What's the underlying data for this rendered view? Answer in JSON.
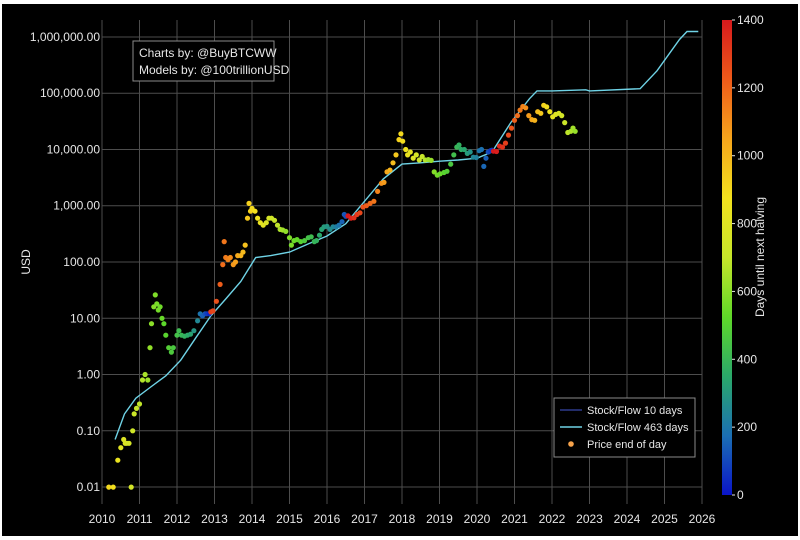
{
  "chart_data": {
    "type": "scatter",
    "title": "",
    "xlabel": "",
    "ylabel": "USD",
    "y_scale": "log",
    "ylim": [
      0.005,
      2000000
    ],
    "xlim": [
      2010,
      2026
    ],
    "x_ticks": [
      "2010",
      "2011",
      "2012",
      "2013",
      "2014",
      "2015",
      "2016",
      "2017",
      "2018",
      "2019",
      "2020",
      "2021",
      "2022",
      "2023",
      "2024",
      "2025",
      "2026"
    ],
    "y_ticks": [
      {
        "value": 0.01,
        "label": "0.01"
      },
      {
        "value": 0.1,
        "label": "0.10"
      },
      {
        "value": 1,
        "label": "1.00"
      },
      {
        "value": 10,
        "label": "10.00"
      },
      {
        "value": 100,
        "label": "100.00"
      },
      {
        "value": 1000,
        "label": "1,000.00"
      },
      {
        "value": 10000,
        "label": "10,000.00"
      },
      {
        "value": 100000,
        "label": "100,000.00"
      },
      {
        "value": 1000000,
        "label": "1,000,000.00"
      }
    ],
    "grid": true,
    "annotation": [
      "Charts by: @BuyBTCWW",
      "Models by: @100trillionUSD"
    ],
    "legend": {
      "position": "bottom-right",
      "entries": [
        {
          "label": "Stock/Flow 10 days",
          "color": "#2e3a8c",
          "marker": "line"
        },
        {
          "label": "Stock/Flow 463 days",
          "color": "#6fd3e6",
          "marker": "line"
        },
        {
          "label": "Price end of day",
          "color": "#f7a34b",
          "marker": "dot"
        }
      ]
    },
    "colorbar": {
      "label": "Days until next halving",
      "range": [
        0,
        1400
      ],
      "ticks": [
        0,
        200,
        400,
        600,
        800,
        1000,
        1200,
        1400
      ],
      "colormap": [
        "#0a14c8",
        "#1b6fb3",
        "#2aa96a",
        "#5fd829",
        "#c6e62a",
        "#f3e21e",
        "#f6a51c",
        "#ee5a1a",
        "#d7191c"
      ]
    },
    "series": [
      {
        "name": "Stock/Flow 463 days",
        "color": "#6fd3e6",
        "points": [
          [
            2010.35,
            0.07
          ],
          [
            2010.6,
            0.2
          ],
          [
            2010.9,
            0.38
          ],
          [
            2011.3,
            0.6
          ],
          [
            2011.7,
            0.95
          ],
          [
            2012.1,
            1.8
          ],
          [
            2012.5,
            4.5
          ],
          [
            2012.9,
            11
          ],
          [
            2013.3,
            22
          ],
          [
            2013.7,
            45
          ],
          [
            2014.1,
            120
          ],
          [
            2014.5,
            130
          ],
          [
            2015.0,
            150
          ],
          [
            2015.5,
            210
          ],
          [
            2016.0,
            290
          ],
          [
            2016.5,
            480
          ],
          [
            2017.0,
            1200
          ],
          [
            2017.5,
            3000
          ],
          [
            2018.0,
            5500
          ],
          [
            2018.5,
            5800
          ],
          [
            2019.0,
            6200
          ],
          [
            2019.5,
            6500
          ],
          [
            2020.0,
            7000
          ],
          [
            2020.4,
            9000
          ],
          [
            2020.9,
            30000
          ],
          [
            2021.4,
            80000
          ],
          [
            2021.6,
            110000
          ],
          [
            2022.0,
            110000
          ],
          [
            2022.9,
            115000
          ],
          [
            2023.0,
            110000
          ],
          [
            2024.35,
            120000
          ],
          [
            2024.8,
            250000
          ],
          [
            2025.4,
            900000
          ],
          [
            2025.6,
            1250000
          ],
          [
            2025.9,
            1250000
          ]
        ]
      },
      {
        "name": "Price end of day",
        "marker": "dot",
        "points": [
          [
            2010.18,
            0.01,
            900
          ],
          [
            2010.3,
            0.01,
            880
          ],
          [
            2010.42,
            0.03,
            840
          ],
          [
            2010.5,
            0.05,
            800
          ],
          [
            2010.58,
            0.07,
            790
          ],
          [
            2010.62,
            0.06,
            780
          ],
          [
            2010.66,
            0.06,
            770
          ],
          [
            2010.72,
            0.06,
            760
          ],
          [
            2010.78,
            0.01,
            750
          ],
          [
            2010.82,
            0.1,
            730
          ],
          [
            2010.86,
            0.2,
            720
          ],
          [
            2010.92,
            0.25,
            700
          ],
          [
            2011.0,
            0.3,
            690
          ],
          [
            2011.08,
            0.8,
            670
          ],
          [
            2011.15,
            1.0,
            650
          ],
          [
            2011.22,
            0.8,
            630
          ],
          [
            2011.28,
            3,
            610
          ],
          [
            2011.32,
            8,
            600
          ],
          [
            2011.38,
            16,
            590
          ],
          [
            2011.42,
            26,
            580
          ],
          [
            2011.46,
            18,
            570
          ],
          [
            2011.5,
            14,
            560
          ],
          [
            2011.55,
            16,
            550
          ],
          [
            2011.6,
            10,
            540
          ],
          [
            2011.65,
            8,
            520
          ],
          [
            2011.7,
            5,
            510
          ],
          [
            2011.78,
            3,
            490
          ],
          [
            2011.85,
            2.5,
            470
          ],
          [
            2011.9,
            3,
            460
          ],
          [
            2012.0,
            5,
            440
          ],
          [
            2012.05,
            6,
            420
          ],
          [
            2012.12,
            5,
            400
          ],
          [
            2012.2,
            4.8,
            380
          ],
          [
            2012.28,
            5,
            360
          ],
          [
            2012.36,
            5.2,
            330
          ],
          [
            2012.45,
            6,
            290
          ],
          [
            2012.55,
            9,
            250
          ],
          [
            2012.62,
            12,
            190
          ],
          [
            2012.68,
            11,
            150
          ],
          [
            2012.75,
            12,
            120
          ],
          [
            2012.8,
            12,
            80
          ],
          [
            2012.86,
            12,
            40
          ],
          [
            2012.9,
            13,
            1300
          ],
          [
            2012.96,
            13.5,
            1280
          ],
          [
            2013.05,
            20,
            1250
          ],
          [
            2013.15,
            40,
            1220
          ],
          [
            2013.22,
            90,
            1180
          ],
          [
            2013.26,
            230,
            1160
          ],
          [
            2013.3,
            120,
            1150
          ],
          [
            2013.36,
            110,
            1130
          ],
          [
            2013.42,
            120,
            1110
          ],
          [
            2013.5,
            90,
            1080
          ],
          [
            2013.56,
            100,
            1060
          ],
          [
            2013.62,
            130,
            1040
          ],
          [
            2013.7,
            130,
            1010
          ],
          [
            2013.76,
            150,
            990
          ],
          [
            2013.82,
            200,
            970
          ],
          [
            2013.88,
            600,
            950
          ],
          [
            2013.92,
            1100,
            930
          ],
          [
            2013.96,
            800,
            920
          ],
          [
            2014.0,
            900,
            900
          ],
          [
            2014.08,
            800,
            880
          ],
          [
            2014.15,
            600,
            860
          ],
          [
            2014.22,
            500,
            840
          ],
          [
            2014.3,
            450,
            810
          ],
          [
            2014.38,
            500,
            780
          ],
          [
            2014.45,
            600,
            760
          ],
          [
            2014.52,
            600,
            740
          ],
          [
            2014.6,
            550,
            710
          ],
          [
            2014.68,
            450,
            690
          ],
          [
            2014.75,
            380,
            660
          ],
          [
            2014.82,
            370,
            640
          ],
          [
            2014.9,
            350,
            610
          ],
          [
            2015.0,
            270,
            580
          ],
          [
            2015.05,
            200,
            570
          ],
          [
            2015.12,
            240,
            550
          ],
          [
            2015.2,
            250,
            530
          ],
          [
            2015.3,
            230,
            500
          ],
          [
            2015.4,
            240,
            470
          ],
          [
            2015.5,
            270,
            440
          ],
          [
            2015.58,
            280,
            420
          ],
          [
            2015.66,
            230,
            400
          ],
          [
            2015.72,
            240,
            380
          ],
          [
            2015.8,
            300,
            350
          ],
          [
            2015.86,
            380,
            330
          ],
          [
            2015.92,
            420,
            310
          ],
          [
            2016.0,
            430,
            290
          ],
          [
            2016.08,
            380,
            270
          ],
          [
            2016.16,
            420,
            250
          ],
          [
            2016.24,
            420,
            220
          ],
          [
            2016.32,
            450,
            190
          ],
          [
            2016.4,
            520,
            150
          ],
          [
            2016.46,
            700,
            130
          ],
          [
            2016.5,
            650,
            110
          ],
          [
            2016.56,
            660,
            1400
          ],
          [
            2016.64,
            600,
            1370
          ],
          [
            2016.72,
            610,
            1340
          ],
          [
            2016.8,
            700,
            1310
          ],
          [
            2016.88,
            750,
            1280
          ],
          [
            2016.96,
            950,
            1250
          ],
          [
            2017.05,
            1000,
            1220
          ],
          [
            2017.15,
            1100,
            1190
          ],
          [
            2017.25,
            1200,
            1160
          ],
          [
            2017.35,
            1800,
            1130
          ],
          [
            2017.45,
            2500,
            1100
          ],
          [
            2017.52,
            2600,
            1070
          ],
          [
            2017.6,
            4000,
            1040
          ],
          [
            2017.68,
            4300,
            1010
          ],
          [
            2017.76,
            5800,
            980
          ],
          [
            2017.84,
            8000,
            950
          ],
          [
            2017.92,
            15000,
            920
          ],
          [
            2017.97,
            19000,
            900
          ],
          [
            2018.02,
            14000,
            890
          ],
          [
            2018.1,
            10000,
            860
          ],
          [
            2018.15,
            8000,
            840
          ],
          [
            2018.22,
            9000,
            820
          ],
          [
            2018.3,
            7000,
            790
          ],
          [
            2018.38,
            8000,
            760
          ],
          [
            2018.46,
            6500,
            730
          ],
          [
            2018.54,
            7500,
            700
          ],
          [
            2018.62,
            6500,
            670
          ],
          [
            2018.7,
            6600,
            640
          ],
          [
            2018.78,
            6400,
            620
          ],
          [
            2018.86,
            4000,
            590
          ],
          [
            2018.94,
            3500,
            560
          ],
          [
            2019.02,
            3700,
            540
          ],
          [
            2019.12,
            3900,
            510
          ],
          [
            2019.2,
            4100,
            490
          ],
          [
            2019.3,
            5500,
            460
          ],
          [
            2019.38,
            8000,
            430
          ],
          [
            2019.46,
            11000,
            400
          ],
          [
            2019.52,
            12000,
            380
          ],
          [
            2019.58,
            10000,
            360
          ],
          [
            2019.66,
            10000,
            340
          ],
          [
            2019.74,
            8500,
            310
          ],
          [
            2019.82,
            9000,
            280
          ],
          [
            2019.9,
            7300,
            250
          ],
          [
            2019.98,
            7200,
            230
          ],
          [
            2020.06,
            9500,
            200
          ],
          [
            2020.12,
            10000,
            180
          ],
          [
            2020.18,
            5000,
            160
          ],
          [
            2020.24,
            7000,
            140
          ],
          [
            2020.3,
            9000,
            110
          ],
          [
            2020.36,
            9500,
            80
          ],
          [
            2020.4,
            9700,
            60
          ],
          [
            2020.44,
            9300,
            1420
          ],
          [
            2020.52,
            9200,
            1390
          ],
          [
            2020.6,
            11500,
            1360
          ],
          [
            2020.68,
            11000,
            1330
          ],
          [
            2020.76,
            13000,
            1300
          ],
          [
            2020.84,
            18000,
            1270
          ],
          [
            2020.92,
            24000,
            1240
          ],
          [
            2021.0,
            33000,
            1210
          ],
          [
            2021.08,
            40000,
            1180
          ],
          [
            2021.15,
            50000,
            1150
          ],
          [
            2021.22,
            58000,
            1130
          ],
          [
            2021.3,
            55000,
            1100
          ],
          [
            2021.38,
            40000,
            1070
          ],
          [
            2021.46,
            34000,
            1040
          ],
          [
            2021.54,
            33000,
            1010
          ],
          [
            2021.62,
            47000,
            980
          ],
          [
            2021.7,
            44000,
            950
          ],
          [
            2021.78,
            61000,
            920
          ],
          [
            2021.86,
            57000,
            890
          ],
          [
            2021.94,
            47000,
            860
          ],
          [
            2022.02,
            38000,
            830
          ],
          [
            2022.1,
            42000,
            800
          ],
          [
            2022.18,
            44000,
            780
          ],
          [
            2022.26,
            40000,
            750
          ],
          [
            2022.34,
            30000,
            720
          ],
          [
            2022.42,
            20000,
            690
          ],
          [
            2022.5,
            21000,
            660
          ],
          [
            2022.56,
            24000,
            640
          ],
          [
            2022.62,
            21000,
            620
          ]
        ]
      }
    ]
  }
}
